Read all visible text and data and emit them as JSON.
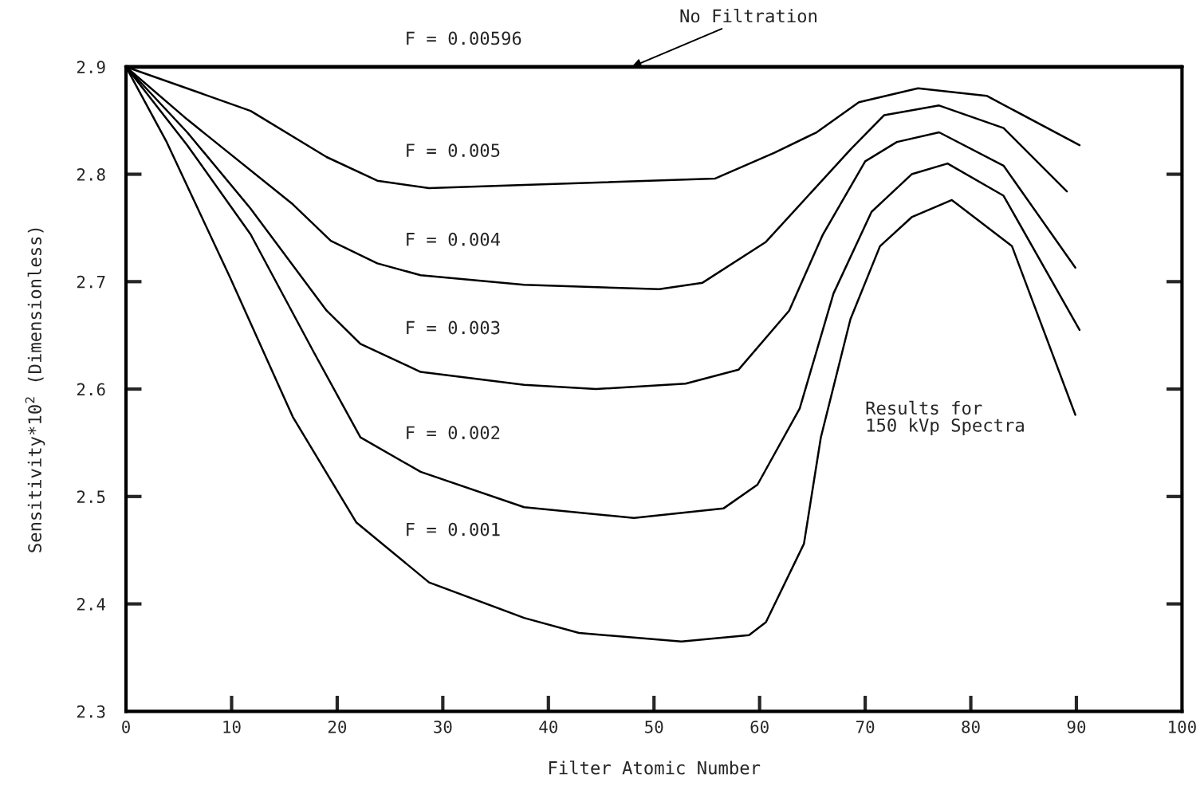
{
  "chart_data": {
    "type": "line",
    "xlabel": "Filter Atomic Number",
    "ylabel": "Sensitivity*10$^{2}$ (Dimensionless)",
    "xlim": [
      0,
      100
    ],
    "ylim": [
      2.3,
      2.9
    ],
    "xticks": [
      0,
      10,
      20,
      30,
      40,
      50,
      60,
      70,
      80,
      90,
      100
    ],
    "yticks": [
      2.3,
      2.4,
      2.5,
      2.6,
      2.7,
      2.8,
      2.9
    ],
    "grid": false,
    "legend": false,
    "marker": "none",
    "line_style": "solid",
    "series": [
      {
        "name": "F = 0.00596",
        "color": "#000000",
        "x": [
          0,
          100
        ],
        "values": [
          2.9,
          2.9
        ]
      },
      {
        "name": "F = 0.005",
        "color": "#000000",
        "x": [
          0,
          11.8,
          19.0,
          23.8,
          28.7,
          37.7,
          55.8,
          61.4,
          65.4,
          69.4,
          75.0,
          81.5,
          90.3
        ],
        "values": [
          2.9,
          2.859,
          2.816,
          2.794,
          2.787,
          2.79,
          2.796,
          2.82,
          2.839,
          2.867,
          2.88,
          2.873,
          2.827
        ]
      },
      {
        "name": "F = 0.004",
        "color": "#000000",
        "x": [
          0,
          5.8,
          15.8,
          19.4,
          23.8,
          27.9,
          37.7,
          50.5,
          54.6,
          60.6,
          64.6,
          68.6,
          71.8,
          77.0,
          83.1,
          89.1
        ],
        "values": [
          2.9,
          2.851,
          2.772,
          2.738,
          2.717,
          2.706,
          2.697,
          2.693,
          2.699,
          2.737,
          2.78,
          2.823,
          2.855,
          2.864,
          2.843,
          2.784
        ]
      },
      {
        "name": "F = 0.003",
        "color": "#000000",
        "x": [
          0,
          5.8,
          11.8,
          19.0,
          22.2,
          27.9,
          37.7,
          44.5,
          53.0,
          58.0,
          62.8,
          66.0,
          70.0,
          73.0,
          77.0,
          83.1,
          89.9
        ],
        "values": [
          2.9,
          2.839,
          2.768,
          2.673,
          2.642,
          2.616,
          2.604,
          2.6,
          2.605,
          2.618,
          2.673,
          2.744,
          2.812,
          2.83,
          2.839,
          2.808,
          2.713
        ]
      },
      {
        "name": "F = 0.002",
        "color": "#000000",
        "x": [
          0,
          5.8,
          11.8,
          17.8,
          22.2,
          27.9,
          37.7,
          48.1,
          56.6,
          59.8,
          63.8,
          67.0,
          70.6,
          74.4,
          77.8,
          83.1,
          90.3
        ],
        "values": [
          2.9,
          2.827,
          2.744,
          2.634,
          2.555,
          2.523,
          2.49,
          2.48,
          2.489,
          2.511,
          2.582,
          2.689,
          2.765,
          2.8,
          2.81,
          2.78,
          2.655
        ]
      },
      {
        "name": "F = 0.001",
        "color": "#000000",
        "x": [
          0,
          3.8,
          9.8,
          15.8,
          21.8,
          28.7,
          37.7,
          42.9,
          52.6,
          59.0,
          60.6,
          64.2,
          65.8,
          68.6,
          71.4,
          74.4,
          78.2,
          83.9,
          89.9
        ],
        "values": [
          2.9,
          2.831,
          2.705,
          2.574,
          2.476,
          2.42,
          2.387,
          2.373,
          2.365,
          2.371,
          2.383,
          2.456,
          2.555,
          2.665,
          2.733,
          2.76,
          2.776,
          2.733,
          2.576
        ]
      }
    ],
    "annotations": [
      {
        "text": "No Filtration",
        "x": 47.9,
        "y": 2.9
      },
      "Results for\n150 kVp Spectra"
    ]
  }
}
